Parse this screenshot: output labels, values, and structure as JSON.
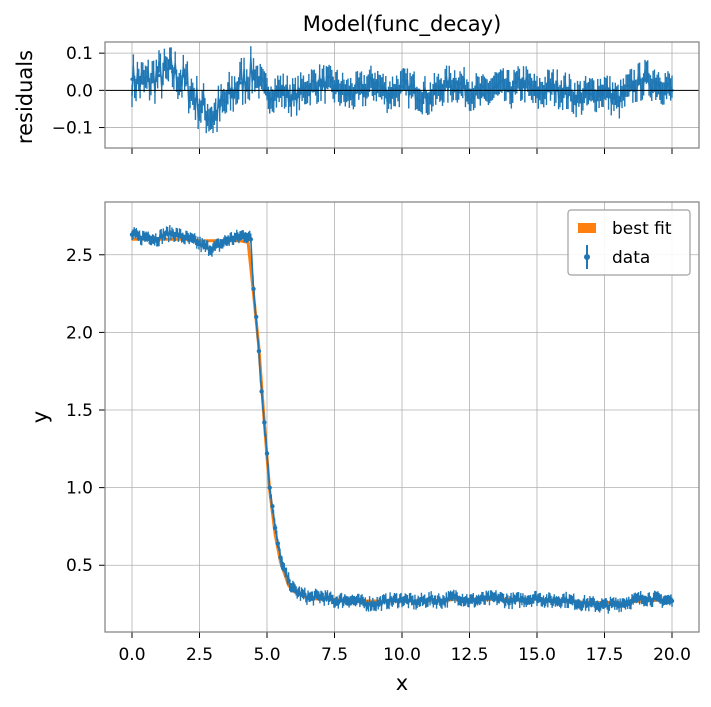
{
  "chart_data": [
    {
      "type": "scatter",
      "panel": "residuals",
      "title": "Model(func_decay)",
      "ylabel": "residuals",
      "xlim": [
        -1,
        21
      ],
      "ylim": [
        -0.155,
        0.13
      ],
      "yticks": [
        0.1,
        0.0,
        -0.1
      ],
      "ytick_labels": [
        "0.1",
        "0.0",
        "−0.1"
      ],
      "grid": true,
      "zero_line": true,
      "series": [
        {
          "x": [
            0.0,
            0.5,
            1.0,
            1.5,
            2.0,
            2.5,
            3.0,
            3.5,
            4.0,
            4.5,
            5.0,
            5.5,
            6.0,
            6.5,
            7.0,
            7.5,
            8.0,
            8.5,
            9.0,
            9.5,
            10.0,
            10.5,
            11.0,
            11.5,
            12.0,
            12.5,
            13.0,
            13.5,
            14.0,
            14.5,
            15.0,
            15.5,
            16.0,
            16.5,
            17.0,
            17.5,
            18.0,
            18.5,
            19.0,
            19.5,
            20.0
          ],
          "y": [
            0.03,
            0.02,
            0.04,
            0.05,
            0.02,
            -0.04,
            -0.07,
            -0.03,
            0.02,
            0.05,
            -0.01,
            0.0,
            -0.02,
            0.01,
            0.02,
            0.01,
            -0.01,
            0.0,
            0.02,
            -0.01,
            0.01,
            0.0,
            -0.02,
            0.01,
            0.02,
            0.0,
            -0.01,
            0.01,
            0.0,
            0.02,
            -0.01,
            0.01,
            0.0,
            -0.02,
            -0.01,
            0.0,
            -0.03,
            0.01,
            0.03,
            0.02,
            0.0
          ],
          "yerr": 0.03
        }
      ]
    },
    {
      "type": "line",
      "panel": "main",
      "xlabel": "x",
      "ylabel": "y",
      "xlim": [
        -1,
        21
      ],
      "ylim": [
        0.07,
        2.84
      ],
      "xticks": [
        0.0,
        2.5,
        5.0,
        7.5,
        10.0,
        12.5,
        15.0,
        17.5,
        20.0
      ],
      "xtick_labels": [
        "0.0",
        "2.5",
        "5.0",
        "7.5",
        "10.0",
        "12.5",
        "15.0",
        "17.5",
        "20.0"
      ],
      "yticks": [
        0.5,
        1.0,
        1.5,
        2.0,
        2.5
      ],
      "ytick_labels": [
        "0.5",
        "1.0",
        "1.5",
        "2.0",
        "2.5"
      ],
      "grid": true,
      "legend": "top-right",
      "series": [
        {
          "name": "best fit",
          "kind": "line",
          "color": "#ff7f0e",
          "x": [
            0.0,
            0.5,
            1.0,
            1.5,
            2.0,
            2.5,
            3.0,
            3.5,
            4.0,
            4.3,
            4.5,
            4.7,
            4.9,
            5.0,
            5.1,
            5.3,
            5.5,
            5.8,
            6.0,
            6.5,
            7.0,
            7.5,
            8.0,
            9.0,
            10.0,
            11.0,
            12.0,
            13.0,
            14.0,
            15.0,
            16.0,
            17.0,
            18.0,
            19.0,
            20.0
          ],
          "y": [
            2.6,
            2.6,
            2.6,
            2.6,
            2.6,
            2.59,
            2.59,
            2.59,
            2.59,
            2.58,
            2.25,
            1.9,
            1.42,
            1.2,
            0.98,
            0.7,
            0.52,
            0.37,
            0.33,
            0.29,
            0.28,
            0.28,
            0.27,
            0.27,
            0.27,
            0.27,
            0.28,
            0.28,
            0.28,
            0.28,
            0.27,
            0.26,
            0.26,
            0.27,
            0.28
          ]
        },
        {
          "name": "data",
          "kind": "errorbar",
          "color": "#1f77b4",
          "yerr": 0.03,
          "x": [
            0.0,
            0.3,
            0.6,
            0.9,
            1.2,
            1.5,
            1.8,
            2.1,
            2.4,
            2.7,
            3.0,
            3.3,
            3.6,
            3.9,
            4.2,
            4.4,
            4.5,
            4.6,
            4.7,
            4.8,
            4.9,
            5.0,
            5.1,
            5.2,
            5.3,
            5.4,
            5.5,
            5.6,
            5.8,
            6.0,
            6.3,
            6.6,
            7.0,
            7.5,
            8.0,
            8.5,
            9.0,
            9.5,
            10.0,
            10.5,
            11.0,
            11.5,
            12.0,
            12.5,
            13.0,
            13.5,
            14.0,
            14.5,
            15.0,
            15.5,
            16.0,
            16.5,
            17.0,
            17.5,
            18.0,
            18.5,
            19.0,
            19.5,
            20.0
          ],
          "y": [
            2.63,
            2.61,
            2.62,
            2.6,
            2.63,
            2.64,
            2.62,
            2.6,
            2.58,
            2.55,
            2.54,
            2.57,
            2.6,
            2.61,
            2.63,
            2.6,
            2.28,
            2.1,
            1.88,
            1.62,
            1.42,
            1.22,
            1.0,
            0.88,
            0.74,
            0.64,
            0.55,
            0.48,
            0.4,
            0.34,
            0.31,
            0.29,
            0.3,
            0.27,
            0.28,
            0.26,
            0.25,
            0.27,
            0.28,
            0.26,
            0.28,
            0.27,
            0.3,
            0.27,
            0.28,
            0.29,
            0.27,
            0.28,
            0.29,
            0.27,
            0.28,
            0.26,
            0.25,
            0.24,
            0.25,
            0.27,
            0.29,
            0.28,
            0.27
          ]
        }
      ]
    }
  ]
}
